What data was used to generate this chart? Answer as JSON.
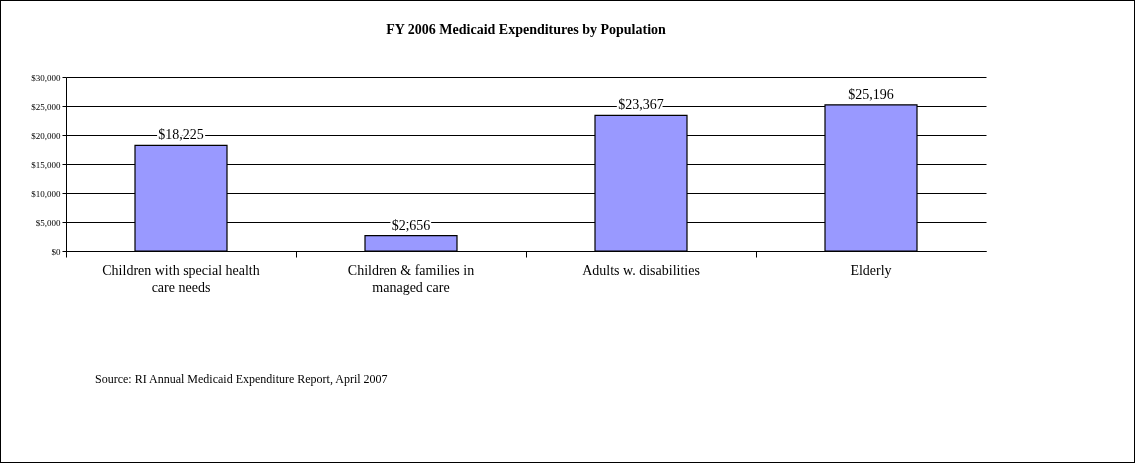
{
  "chart_data": {
    "type": "bar",
    "title": "FY 2006 Medicaid Expenditures by Population",
    "categories": [
      "Children with special health care needs",
      "Children & families in managed care",
      "Adults w. disabilities",
      "Elderly"
    ],
    "values": [
      18225,
      2656,
      23367,
      25196
    ],
    "value_labels": [
      "$18,225",
      "$2,656",
      "$23,367",
      "$25,196"
    ],
    "color": "#9999ff",
    "ylim": [
      0,
      30000
    ],
    "yticks": [
      {
        "value": 0,
        "label": "$0"
      },
      {
        "value": 5000,
        "label": "$5,000"
      },
      {
        "value": 10000,
        "label": "$10,000"
      },
      {
        "value": 15000,
        "label": "$15,000"
      },
      {
        "value": 20000,
        "label": "$20,000"
      },
      {
        "value": 25000,
        "label": "$25,000"
      },
      {
        "value": 30000,
        "label": "$30,000"
      }
    ],
    "grid": "y",
    "annotations": [
      "Source: RI Annual Medicaid Expenditure Report, April 2007"
    ]
  }
}
